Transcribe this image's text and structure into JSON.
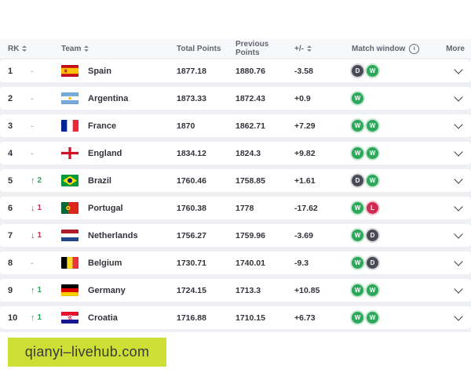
{
  "page": {
    "watermark": "qianyi–livehub.com"
  },
  "table": {
    "columns": {
      "rk": "RK",
      "team": "Team",
      "total": "Total Points",
      "previous": "Previous Points",
      "diff": "+/-",
      "match_window": "Match window",
      "more": "More"
    },
    "rows": [
      {
        "rank": "1",
        "change": {
          "dir": "same",
          "value": ""
        },
        "team": "Spain",
        "flag": "es",
        "total": "1877.18",
        "previous": "1880.76",
        "diff": "-3.58",
        "matches": [
          "D",
          "W"
        ]
      },
      {
        "rank": "2",
        "change": {
          "dir": "same",
          "value": ""
        },
        "team": "Argentina",
        "flag": "ar",
        "total": "1873.33",
        "previous": "1872.43",
        "diff": "+0.9",
        "matches": [
          "W"
        ]
      },
      {
        "rank": "3",
        "change": {
          "dir": "same",
          "value": ""
        },
        "team": "France",
        "flag": "fr",
        "total": "1870",
        "previous": "1862.71",
        "diff": "+7.29",
        "matches": [
          "W",
          "W"
        ]
      },
      {
        "rank": "4",
        "change": {
          "dir": "same",
          "value": ""
        },
        "team": "England",
        "flag": "eng",
        "total": "1834.12",
        "previous": "1824.3",
        "diff": "+9.82",
        "matches": [
          "W",
          "W"
        ]
      },
      {
        "rank": "5",
        "change": {
          "dir": "up",
          "value": "2"
        },
        "team": "Brazil",
        "flag": "br",
        "total": "1760.46",
        "previous": "1758.85",
        "diff": "+1.61",
        "matches": [
          "D",
          "W"
        ]
      },
      {
        "rank": "6",
        "change": {
          "dir": "down",
          "value": "1"
        },
        "team": "Portugal",
        "flag": "pt",
        "total": "1760.38",
        "previous": "1778",
        "diff": "-17.62",
        "matches": [
          "W",
          "L"
        ]
      },
      {
        "rank": "7",
        "change": {
          "dir": "down",
          "value": "1"
        },
        "team": "Netherlands",
        "flag": "nl",
        "total": "1756.27",
        "previous": "1759.96",
        "diff": "-3.69",
        "matches": [
          "W",
          "D"
        ]
      },
      {
        "rank": "8",
        "change": {
          "dir": "same",
          "value": ""
        },
        "team": "Belgium",
        "flag": "be",
        "total": "1730.71",
        "previous": "1740.01",
        "diff": "-9.3",
        "matches": [
          "W",
          "D"
        ]
      },
      {
        "rank": "9",
        "change": {
          "dir": "up",
          "value": "1"
        },
        "team": "Germany",
        "flag": "de",
        "total": "1724.15",
        "previous": "1713.3",
        "diff": "+10.85",
        "matches": [
          "W",
          "W"
        ]
      },
      {
        "rank": "10",
        "change": {
          "dir": "up",
          "value": "1"
        },
        "team": "Croatia",
        "flag": "hr",
        "total": "1716.88",
        "previous": "1710.15",
        "diff": "+6.73",
        "matches": [
          "W",
          "W"
        ]
      }
    ]
  },
  "colors": {
    "win_green": "#2da85a",
    "draw_dark": "#4a4a54",
    "loss_red": "#d02a52",
    "up_green": "#2da05a",
    "down_red": "#c23252",
    "watermark_bg": "#cdde34"
  }
}
